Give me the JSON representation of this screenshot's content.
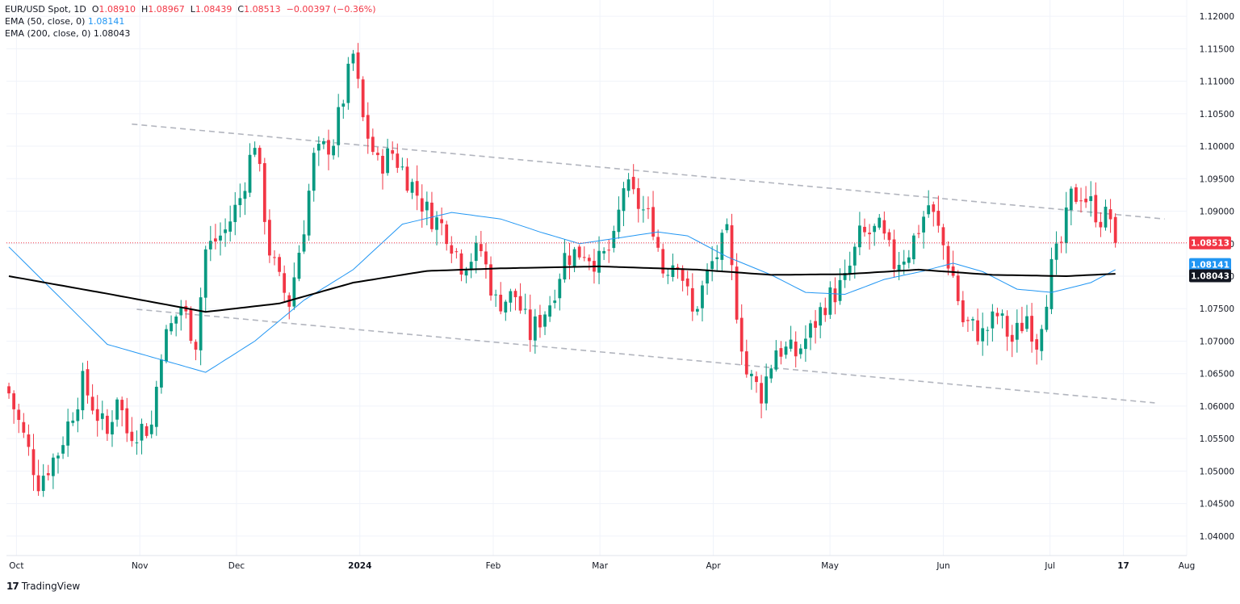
{
  "legend": {
    "symbol": "EUR/USD Spot, 1D",
    "o_label": "O",
    "o": "1.08910",
    "h_label": "H",
    "h": "1.08967",
    "l_label": "L",
    "l": "1.08439",
    "c_label": "C",
    "c": "1.08513",
    "change": "−0.00397 (−0.36%)",
    "ema50_label": "EMA (50, close, 0)",
    "ema50_value": "1.08141",
    "ema200_label": "EMA (200, close, 0)",
    "ema200_value": "1.08043"
  },
  "brand": {
    "text": "TradingView",
    "logo": "17"
  },
  "colors": {
    "up": "#089981",
    "down": "#f23645",
    "ema50": "#2196f3",
    "ema200": "#000000",
    "grid": "#f0f3fa",
    "trendline": "#b2b5be",
    "price_line": "#f23645"
  },
  "chart_data": {
    "type": "candlestick",
    "symbol": "EUR/USD",
    "timeframe": "1D",
    "ylim": [
      1.037,
      1.1225
    ],
    "y_ticks": [
      "1.12000",
      "1.11500",
      "1.11000",
      "1.10500",
      "1.10000",
      "1.09500",
      "1.09000",
      "1.08500",
      "1.08000",
      "1.07500",
      "1.07000",
      "1.06500",
      "1.06000",
      "1.05500",
      "1.05000",
      "1.04500",
      "1.04000"
    ],
    "x_ticks": [
      {
        "label": "Oct",
        "bold": false
      },
      {
        "label": "Nov",
        "bold": false
      },
      {
        "label": "Dec",
        "bold": false
      },
      {
        "label": "2024",
        "bold": true
      },
      {
        "label": "Feb",
        "bold": false
      },
      {
        "label": "Mar",
        "bold": false
      },
      {
        "label": "Apr",
        "bold": false
      },
      {
        "label": "May",
        "bold": false
      },
      {
        "label": "Jun",
        "bold": false
      },
      {
        "label": "Jul",
        "bold": false
      },
      {
        "label": "17",
        "bold": true
      },
      {
        "label": "Aug",
        "bold": false
      }
    ],
    "price_labels": [
      {
        "name": "last",
        "value": "1.08513",
        "price": 1.08513,
        "color": "#f23645"
      },
      {
        "name": "ema50",
        "value": "1.08141",
        "price": 1.08141,
        "color": "#2196f3"
      },
      {
        "name": "ema200",
        "value": "1.08043",
        "price": 1.08043,
        "color": "#131722"
      }
    ],
    "ema50": [
      [
        0,
        1.0845
      ],
      [
        20,
        1.0695
      ],
      [
        40,
        1.0652
      ],
      [
        50,
        1.07
      ],
      [
        60,
        1.0763
      ],
      [
        70,
        1.081
      ],
      [
        80,
        1.088
      ],
      [
        90,
        1.0898
      ],
      [
        100,
        1.0888
      ],
      [
        108,
        1.0868
      ],
      [
        116,
        1.085
      ],
      [
        125,
        1.086
      ],
      [
        132,
        1.0868
      ],
      [
        138,
        1.0862
      ],
      [
        146,
        1.083
      ],
      [
        155,
        1.0802
      ],
      [
        162,
        1.0775
      ],
      [
        170,
        1.0772
      ],
      [
        178,
        1.0795
      ],
      [
        186,
        1.0808
      ],
      [
        192,
        1.082
      ],
      [
        198,
        1.0807
      ],
      [
        205,
        1.078
      ],
      [
        212,
        1.0775
      ],
      [
        220,
        1.079
      ],
      [
        226,
        1.0814
      ]
    ],
    "ema200": [
      [
        0,
        1.08
      ],
      [
        20,
        1.0773
      ],
      [
        40,
        1.0745
      ],
      [
        55,
        1.0758
      ],
      [
        70,
        1.079
      ],
      [
        85,
        1.0808
      ],
      [
        100,
        1.0812
      ],
      [
        120,
        1.0815
      ],
      [
        140,
        1.081
      ],
      [
        155,
        1.0802
      ],
      [
        170,
        1.0803
      ],
      [
        185,
        1.081
      ],
      [
        200,
        1.0802
      ],
      [
        215,
        1.08
      ],
      [
        226,
        1.0804
      ]
    ],
    "trendlines": [
      {
        "name": "upper",
        "points": [
          [
            25,
            1.1034
          ],
          [
            235,
            1.0888
          ]
        ]
      },
      {
        "name": "lower",
        "points": [
          [
            26,
            1.0749
          ],
          [
            233,
            1.0605
          ]
        ]
      }
    ],
    "closes": [
      [
        0,
        1.062
      ],
      [
        6,
        1.0485
      ],
      [
        10,
        1.053
      ],
      [
        15,
        1.0635
      ],
      [
        20,
        1.0555
      ],
      [
        22,
        1.062
      ],
      [
        24,
        1.056
      ],
      [
        29,
        1.057
      ],
      [
        31,
        1.069
      ],
      [
        35,
        1.0755
      ],
      [
        38,
        1.07
      ],
      [
        40,
        1.084
      ],
      [
        44,
        1.087
      ],
      [
        47,
        1.092
      ],
      [
        50,
        1.101
      ],
      [
        53,
        1.084
      ],
      [
        55,
        1.079
      ],
      [
        57,
        1.076
      ],
      [
        60,
        1.088
      ],
      [
        62,
        1.098
      ],
      [
        66,
        1.101
      ],
      [
        70,
        1.114
      ],
      [
        72,
        1.104
      ],
      [
        75,
        1.097
      ],
      [
        78,
        1.099
      ],
      [
        82,
        1.094
      ],
      [
        85,
        1.09
      ],
      [
        89,
        1.087
      ],
      [
        92,
        1.082
      ],
      [
        96,
        1.084
      ],
      [
        99,
        1.076
      ],
      [
        103,
        1.077
      ],
      [
        106,
        1.071
      ],
      [
        110,
        1.076
      ],
      [
        113,
        1.083
      ],
      [
        117,
        1.084
      ],
      [
        120,
        1.082
      ],
      [
        123,
        1.085
      ],
      [
        125,
        1.094
      ],
      [
        127,
        1.092
      ],
      [
        131,
        1.088
      ],
      [
        133,
        1.081
      ],
      [
        136,
        1.083
      ],
      [
        139,
        1.074
      ],
      [
        143,
        1.082
      ],
      [
        146,
        1.086
      ],
      [
        148,
        1.075
      ],
      [
        150,
        1.065
      ],
      [
        153,
        1.062
      ],
      [
        156,
        1.069
      ],
      [
        160,
        1.068
      ],
      [
        163,
        1.0715
      ],
      [
        166,
        1.076
      ],
      [
        170,
        1.079
      ],
      [
        173,
        1.086
      ],
      [
        177,
        1.087
      ],
      [
        180,
        1.082
      ],
      [
        183,
        1.084
      ],
      [
        187,
        1.091
      ],
      [
        189,
        1.087
      ],
      [
        192,
        1.08
      ],
      [
        194,
        1.073
      ],
      [
        198,
        1.071
      ],
      [
        201,
        1.074
      ],
      [
        204,
        1.07
      ],
      [
        207,
        1.074
      ],
      [
        209,
        1.07
      ],
      [
        212,
        1.081
      ],
      [
        214,
        1.085
      ],
      [
        216,
        1.092
      ],
      [
        218,
        1.093
      ],
      [
        220,
        1.091
      ],
      [
        222,
        1.089
      ],
      [
        224,
        1.0891
      ],
      [
        225,
        1.0851
      ]
    ],
    "last_bar_index": 225,
    "total_slots": 240
  }
}
